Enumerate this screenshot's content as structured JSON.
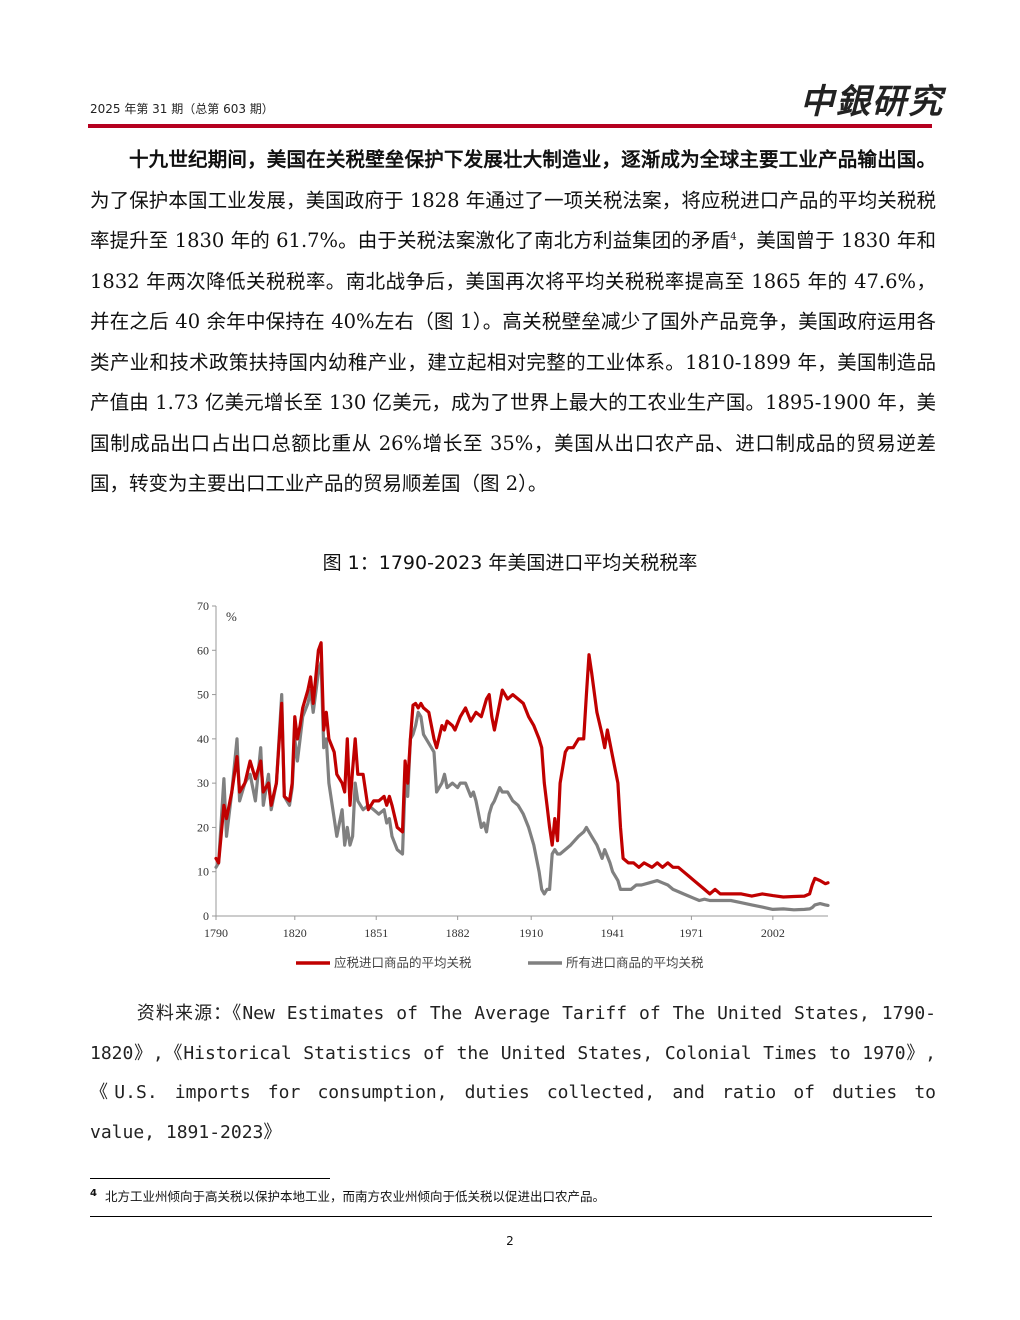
{
  "header": {
    "issue": "2025 年第 31 期（总第 603 期）",
    "logo_text": "中銀研究"
  },
  "body": {
    "lead": "十九世纪期间，美国在关税壁垒保护下发展壮大制造业，逐渐成为全球主要工业产品输出国。",
    "text_before_note": "为了保护本国工业发展，美国政府于 1828 年通过了一项关税法案，将应税进口产品的平均关税税率提升至 1830 年的 61.7%。由于关税法案激化了南北方利益集团的矛盾",
    "note_ref": "4",
    "text_after_note": "，美国曾于 1830 年和 1832 年两次降低关税税率。南北战争后，美国再次将平均关税税率提高至 1865 年的 47.6%，并在之后 40 余年中保持在 40%左右（图 1）。高关税壁垒减少了国外产品竞争，美国政府运用各类产业和技术政策扶持国内幼稚产业，建立起相对完整的工业体系。1810-1899 年，美国制造品产值由 1.73 亿美元增长至 130 亿美元，成为了世界上最大的工农业生产国。1895-1900 年，美国制成品出口占出口总额比重从 26%增长至 35%，美国从出口农产品、进口制成品的贸易逆差国，转变为主要出口工业产品的贸易顺差国（图 2）。"
  },
  "figure": {
    "title": "图 1：1790-2023 年美国进口平均关税税率"
  },
  "chart_data": {
    "type": "line",
    "unit_label": "%",
    "ylim": [
      0,
      70
    ],
    "yticks": [
      0,
      10,
      20,
      30,
      40,
      50,
      60,
      70
    ],
    "xlim": [
      1790,
      2023
    ],
    "xticks": [
      1790,
      1820,
      1851,
      1882,
      1910,
      1941,
      1971,
      2002
    ],
    "grid": false,
    "legend_position": "bottom",
    "series": [
      {
        "name": "应税进口商品的平均关税",
        "color": "#c00000",
        "points": [
          [
            1790,
            13
          ],
          [
            1791,
            12
          ],
          [
            1793,
            25
          ],
          [
            1794,
            22
          ],
          [
            1796,
            28
          ],
          [
            1798,
            36
          ],
          [
            1799,
            28
          ],
          [
            1801,
            30
          ],
          [
            1803,
            35
          ],
          [
            1805,
            31
          ],
          [
            1807,
            35
          ],
          [
            1808,
            28
          ],
          [
            1810,
            30
          ],
          [
            1811,
            25
          ],
          [
            1813,
            30
          ],
          [
            1815,
            48
          ],
          [
            1816,
            27
          ],
          [
            1818,
            26
          ],
          [
            1819,
            30
          ],
          [
            1820,
            45
          ],
          [
            1821,
            40
          ],
          [
            1822,
            43
          ],
          [
            1823,
            47
          ],
          [
            1825,
            51
          ],
          [
            1826,
            54
          ],
          [
            1827,
            48
          ],
          [
            1829,
            60
          ],
          [
            1830,
            61.7
          ],
          [
            1831,
            42
          ],
          [
            1832,
            46
          ],
          [
            1833,
            40
          ],
          [
            1835,
            37
          ],
          [
            1836,
            32
          ],
          [
            1838,
            30
          ],
          [
            1839,
            28
          ],
          [
            1840,
            40
          ],
          [
            1841,
            25
          ],
          [
            1842,
            33
          ],
          [
            1843,
            40
          ],
          [
            1844,
            32
          ],
          [
            1846,
            32
          ],
          [
            1848,
            24
          ],
          [
            1850,
            26
          ],
          [
            1852,
            26
          ],
          [
            1854,
            27
          ],
          [
            1855,
            25
          ],
          [
            1856,
            27
          ],
          [
            1857,
            25
          ],
          [
            1859,
            20
          ],
          [
            1861,
            19
          ],
          [
            1862,
            35
          ],
          [
            1863,
            30
          ],
          [
            1864,
            40
          ],
          [
            1865,
            47.6
          ],
          [
            1866,
            48
          ],
          [
            1867,
            47
          ],
          [
            1868,
            48
          ],
          [
            1869,
            47
          ],
          [
            1871,
            46
          ],
          [
            1873,
            40
          ],
          [
            1874,
            38
          ],
          [
            1876,
            43
          ],
          [
            1877,
            42
          ],
          [
            1878,
            44
          ],
          [
            1880,
            43
          ],
          [
            1881,
            42
          ],
          [
            1883,
            45
          ],
          [
            1885,
            47
          ],
          [
            1887,
            44
          ],
          [
            1888,
            45
          ],
          [
            1889,
            46
          ],
          [
            1891,
            45
          ],
          [
            1893,
            49
          ],
          [
            1894,
            50
          ],
          [
            1895,
            45
          ],
          [
            1896,
            42
          ],
          [
            1898,
            48
          ],
          [
            1899,
            51
          ],
          [
            1901,
            49
          ],
          [
            1903,
            50
          ],
          [
            1905,
            49
          ],
          [
            1907,
            48
          ],
          [
            1909,
            45
          ],
          [
            1911,
            43
          ],
          [
            1913,
            40
          ],
          [
            1914,
            38
          ],
          [
            1915,
            30
          ],
          [
            1916,
            25
          ],
          [
            1917,
            20
          ],
          [
            1918,
            16
          ],
          [
            1919,
            22
          ],
          [
            1920,
            17
          ],
          [
            1921,
            30
          ],
          [
            1923,
            37
          ],
          [
            1924,
            38
          ],
          [
            1926,
            38
          ],
          [
            1928,
            40
          ],
          [
            1930,
            40
          ],
          [
            1931,
            50
          ],
          [
            1932,
            59
          ],
          [
            1933,
            55
          ],
          [
            1935,
            46
          ],
          [
            1937,
            41
          ],
          [
            1938,
            38
          ],
          [
            1939,
            42
          ],
          [
            1941,
            36
          ],
          [
            1943,
            30
          ],
          [
            1944,
            20
          ],
          [
            1945,
            13
          ],
          [
            1947,
            12
          ],
          [
            1949,
            12
          ],
          [
            1951,
            11
          ],
          [
            1953,
            12
          ],
          [
            1956,
            11
          ],
          [
            1958,
            12
          ],
          [
            1960,
            11
          ],
          [
            1962,
            12
          ],
          [
            1964,
            11
          ],
          [
            1966,
            11
          ],
          [
            1968,
            10
          ],
          [
            1970,
            9
          ],
          [
            1972,
            8
          ],
          [
            1974,
            7
          ],
          [
            1976,
            6
          ],
          [
            1978,
            5
          ],
          [
            1980,
            6
          ],
          [
            1982,
            5
          ],
          [
            1986,
            5
          ],
          [
            1990,
            5
          ],
          [
            1994,
            4.5
          ],
          [
            1998,
            5
          ],
          [
            2002,
            4.6
          ],
          [
            2006,
            4.3
          ],
          [
            2010,
            4.4
          ],
          [
            2014,
            4.5
          ],
          [
            2016,
            5
          ],
          [
            2017,
            7
          ],
          [
            2018,
            8.5
          ],
          [
            2020,
            8
          ],
          [
            2022,
            7.3
          ],
          [
            2023,
            7.5
          ]
        ]
      },
      {
        "name": "所有进口商品的平均关税",
        "color": "#808080",
        "points": [
          [
            1790,
            11
          ],
          [
            1791,
            12
          ],
          [
            1793,
            31
          ],
          [
            1794,
            18
          ],
          [
            1796,
            28
          ],
          [
            1798,
            40
          ],
          [
            1799,
            26
          ],
          [
            1801,
            30
          ],
          [
            1803,
            32
          ],
          [
            1805,
            26
          ],
          [
            1807,
            38
          ],
          [
            1808,
            25
          ],
          [
            1810,
            32
          ],
          [
            1811,
            24
          ],
          [
            1813,
            30
          ],
          [
            1815,
            50
          ],
          [
            1816,
            27
          ],
          [
            1818,
            25
          ],
          [
            1819,
            29
          ],
          [
            1820,
            40
          ],
          [
            1821,
            35
          ],
          [
            1822,
            40
          ],
          [
            1823,
            45
          ],
          [
            1825,
            48
          ],
          [
            1826,
            51
          ],
          [
            1827,
            46
          ],
          [
            1829,
            55
          ],
          [
            1830,
            57.3
          ],
          [
            1831,
            38
          ],
          [
            1832,
            40
          ],
          [
            1833,
            30
          ],
          [
            1835,
            22
          ],
          [
            1836,
            18
          ],
          [
            1838,
            24
          ],
          [
            1839,
            16
          ],
          [
            1840,
            20
          ],
          [
            1841,
            16
          ],
          [
            1842,
            18
          ],
          [
            1843,
            30
          ],
          [
            1844,
            26
          ],
          [
            1846,
            24
          ],
          [
            1848,
            25
          ],
          [
            1850,
            24
          ],
          [
            1852,
            23
          ],
          [
            1854,
            24
          ],
          [
            1855,
            21
          ],
          [
            1856,
            22
          ],
          [
            1857,
            18
          ],
          [
            1859,
            15
          ],
          [
            1861,
            14
          ],
          [
            1862,
            30
          ],
          [
            1863,
            27
          ],
          [
            1864,
            40
          ],
          [
            1865,
            41
          ],
          [
            1866,
            43
          ],
          [
            1867,
            46
          ],
          [
            1868,
            45
          ],
          [
            1869,
            41
          ],
          [
            1871,
            39
          ],
          [
            1873,
            37
          ],
          [
            1874,
            28
          ],
          [
            1876,
            30
          ],
          [
            1877,
            32
          ],
          [
            1878,
            29
          ],
          [
            1880,
            30
          ],
          [
            1882,
            29
          ],
          [
            1883,
            30
          ],
          [
            1885,
            30
          ],
          [
            1887,
            27
          ],
          [
            1888,
            28
          ],
          [
            1889,
            26
          ],
          [
            1891,
            20
          ],
          [
            1892,
            21
          ],
          [
            1893,
            19
          ],
          [
            1894,
            23
          ],
          [
            1895,
            25
          ],
          [
            1896,
            26
          ],
          [
            1898,
            29
          ],
          [
            1899,
            28
          ],
          [
            1901,
            28
          ],
          [
            1903,
            26
          ],
          [
            1905,
            25
          ],
          [
            1907,
            23
          ],
          [
            1909,
            20
          ],
          [
            1911,
            16
          ],
          [
            1913,
            10
          ],
          [
            1914,
            6
          ],
          [
            1915,
            5
          ],
          [
            1916,
            6
          ],
          [
            1917,
            6
          ],
          [
            1918,
            14
          ],
          [
            1919,
            15
          ],
          [
            1920,
            14
          ],
          [
            1921,
            14
          ],
          [
            1923,
            15
          ],
          [
            1925,
            16
          ],
          [
            1928,
            18
          ],
          [
            1930,
            19
          ],
          [
            1931,
            20
          ],
          [
            1933,
            18
          ],
          [
            1935,
            16
          ],
          [
            1937,
            13
          ],
          [
            1938,
            15
          ],
          [
            1940,
            12
          ],
          [
            1941,
            10
          ],
          [
            1943,
            8
          ],
          [
            1944,
            6
          ],
          [
            1946,
            6
          ],
          [
            1948,
            6
          ],
          [
            1950,
            7
          ],
          [
            1952,
            7
          ],
          [
            1955,
            7.5
          ],
          [
            1958,
            8
          ],
          [
            1960,
            7.5
          ],
          [
            1962,
            7
          ],
          [
            1964,
            6
          ],
          [
            1966,
            5.5
          ],
          [
            1968,
            5
          ],
          [
            1970,
            4.5
          ],
          [
            1972,
            4
          ],
          [
            1974,
            3.5
          ],
          [
            1976,
            3.8
          ],
          [
            1978,
            3.5
          ],
          [
            1982,
            3.5
          ],
          [
            1986,
            3.5
          ],
          [
            1990,
            3
          ],
          [
            1994,
            2.5
          ],
          [
            1998,
            2
          ],
          [
            2002,
            1.5
          ],
          [
            2006,
            1.6
          ],
          [
            2010,
            1.4
          ],
          [
            2014,
            1.5
          ],
          [
            2016,
            1.6
          ],
          [
            2017,
            1.9
          ],
          [
            2018,
            2.5
          ],
          [
            2020,
            2.8
          ],
          [
            2022,
            2.5
          ],
          [
            2023,
            2.4
          ]
        ]
      }
    ]
  },
  "source": {
    "text": "资料来源：《New Estimates of The Average Tariff of The United States, 1790-1820》,《Historical Statistics of the United States, Colonial Times to 1970》,《U.S. imports for consumption, duties collected, and ratio of duties to value, 1891-2023》"
  },
  "footnote": {
    "mark": "4",
    "text": "北方工业州倾向于高关税以保护本地工业，而南方农业州倾向于低关税以促进出口农产品。"
  },
  "page_number": "2"
}
